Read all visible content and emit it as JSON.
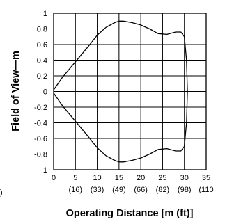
{
  "chart_data": {
    "type": "line",
    "title": "",
    "xlabel": "Operating Distance [m (ft)]",
    "ylabel": "Field of View—m",
    "xlim": [
      0,
      35
    ],
    "ylim": [
      -1,
      1
    ],
    "grid": true,
    "legend": "none",
    "x_ticks": [
      {
        "value": 0,
        "label": "0",
        "sublabel": ""
      },
      {
        "value": 5,
        "label": "5",
        "sublabel": "(16)"
      },
      {
        "value": 10,
        "label": "10",
        "sublabel": "(33)"
      },
      {
        "value": 15,
        "label": "15",
        "sublabel": "(49)"
      },
      {
        "value": 20,
        "label": "20",
        "sublabel": "(66)"
      },
      {
        "value": 25,
        "label": "25",
        "sublabel": "(82)"
      },
      {
        "value": 30,
        "label": "30",
        "sublabel": "(98)"
      },
      {
        "value": 35,
        "label": "35",
        "sublabel": "(110"
      }
    ],
    "y_ticks": [
      {
        "value": 1,
        "label": "1"
      },
      {
        "value": 0.8,
        "label": "0.8"
      },
      {
        "value": 0.6,
        "label": "0.6"
      },
      {
        "value": 0.4,
        "label": "0.4"
      },
      {
        "value": 0.2,
        "label": "0.2"
      },
      {
        "value": 0,
        "label": "0"
      },
      {
        "value": -0.2,
        "label": "-0.2"
      },
      {
        "value": -0.4,
        "label": "-0.4"
      },
      {
        "value": -0.6,
        "label": "-0.6"
      },
      {
        "value": -0.8,
        "label": "-0.8"
      },
      {
        "value": -1,
        "label": "1"
      }
    ],
    "left_edge_label": ")",
    "series": [
      {
        "x": [
          0,
          2,
          5,
          8,
          10,
          12,
          14,
          15,
          16,
          18,
          20,
          22,
          24,
          26,
          28,
          29.2,
          30,
          30.5,
          30.7,
          30.5,
          30,
          29.2,
          28,
          26,
          24,
          22,
          20,
          18,
          16,
          15,
          14,
          12,
          10,
          8,
          5,
          2,
          0
        ],
        "y": [
          0.02,
          0.18,
          0.38,
          0.58,
          0.72,
          0.82,
          0.88,
          0.9,
          0.9,
          0.88,
          0.85,
          0.8,
          0.74,
          0.73,
          0.76,
          0.76,
          0.7,
          0.4,
          0,
          -0.4,
          -0.7,
          -0.76,
          -0.76,
          -0.73,
          -0.74,
          -0.8,
          -0.85,
          -0.88,
          -0.9,
          -0.9,
          -0.88,
          -0.82,
          -0.72,
          -0.58,
          -0.38,
          -0.18,
          -0.02
        ]
      }
    ]
  }
}
